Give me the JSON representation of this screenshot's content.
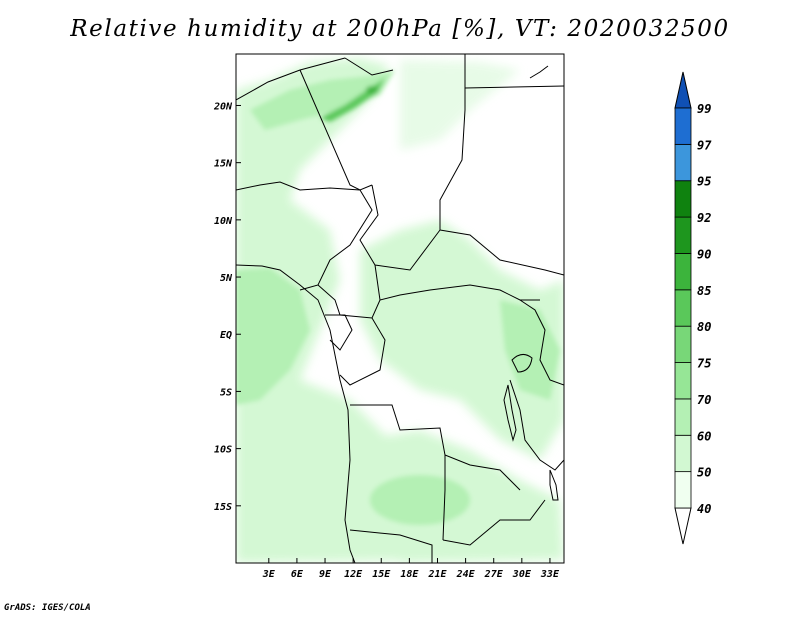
{
  "title": "Relative humidity at 200hPa [%], VT: 2020032500",
  "credit": "GrADS: IGES/COLA",
  "map": {
    "lon_range": [
      -0.5,
      34.5
    ],
    "lat_range": [
      -20,
      24.5
    ],
    "lon_ticks": [
      "3E",
      "6E",
      "9E",
      "12E",
      "15E",
      "18E",
      "21E",
      "24E",
      "27E",
      "30E",
      "33E"
    ],
    "lat_ticks": [
      "20N",
      "15N",
      "10N",
      "5N",
      "EQ",
      "5S",
      "10S",
      "15S"
    ],
    "lon_tick_values": [
      3,
      6,
      9,
      12,
      15,
      18,
      21,
      24,
      27,
      30,
      33
    ],
    "lat_tick_values": [
      20,
      15,
      10,
      5,
      0,
      -5,
      -10,
      -15
    ]
  },
  "colorbar": {
    "labels": [
      "99",
      "97",
      "95",
      "92",
      "90",
      "85",
      "80",
      "75",
      "70",
      "60",
      "50",
      "40"
    ],
    "colors": [
      "#f0fff0",
      "#d2f8d2",
      "#b4f0b4",
      "#96e696",
      "#78d778",
      "#5ac85a",
      "#3cb43c",
      "#1e961e",
      "#0f820f",
      "#3c96dc",
      "#1e6ed2",
      "#1050b4"
    ]
  }
}
